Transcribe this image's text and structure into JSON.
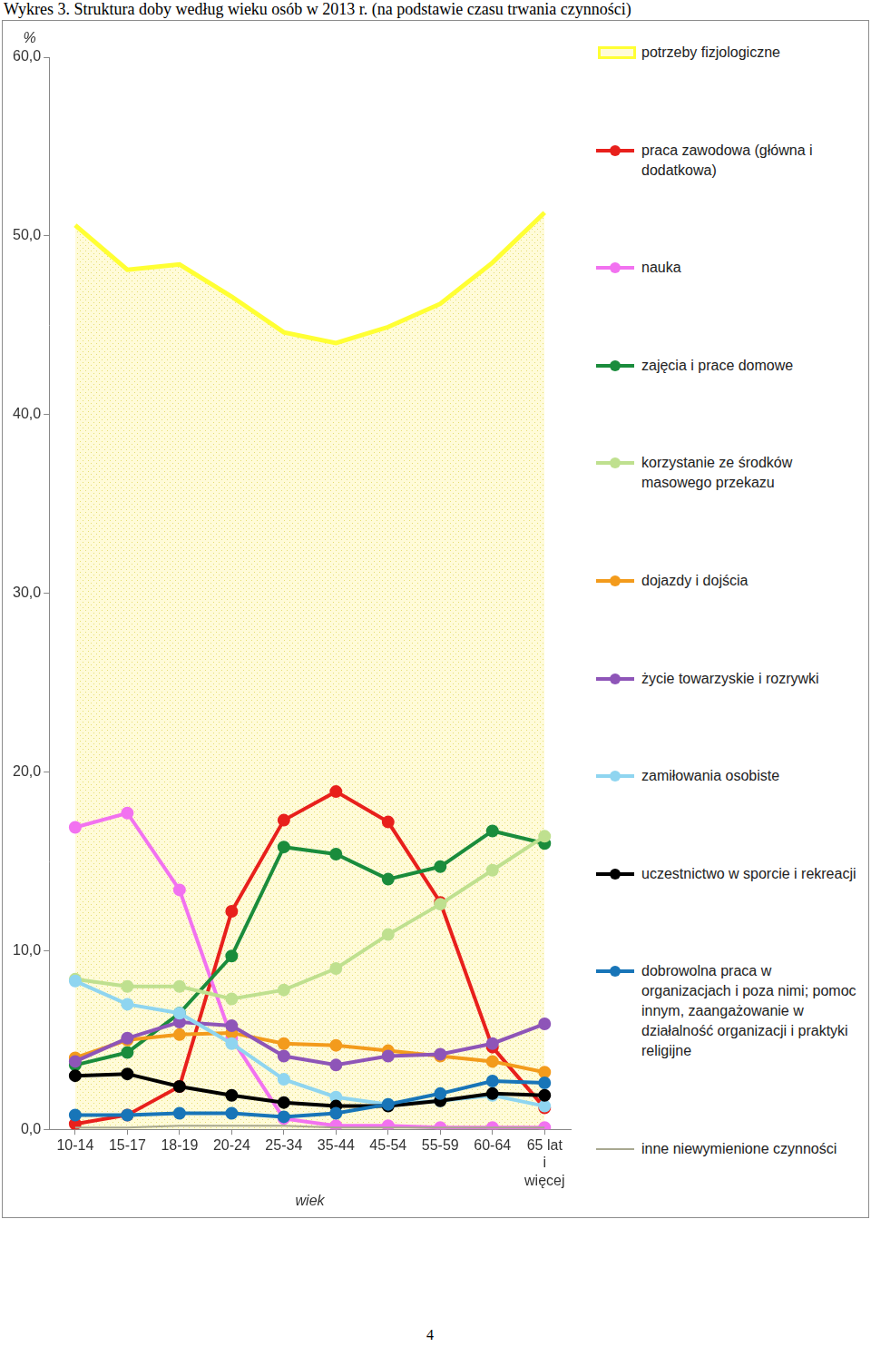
{
  "page_number": "4",
  "chart_data": {
    "type": "line",
    "title": "Wykres 3. Struktura doby według wieku osób w 2013 r. (na podstawie czasu trwania czynności)",
    "x_label": "wiek",
    "y_label": "%",
    "categories": [
      "10-14",
      "15-17",
      "18-19",
      "20-24",
      "25-34",
      "35-44",
      "45-54",
      "55-59",
      "60-64",
      "65 lat i więcej"
    ],
    "ylim": [
      0,
      60
    ],
    "yticks": [
      {
        "value": 0,
        "label": "0,0"
      },
      {
        "value": 10,
        "label": "10,0"
      },
      {
        "value": 20,
        "label": "20,0"
      },
      {
        "value": 30,
        "label": "30,0"
      },
      {
        "value": 40,
        "label": "40,0"
      },
      {
        "value": 50,
        "label": "50,0"
      },
      {
        "value": 60,
        "label": "60,0"
      }
    ],
    "grid": false,
    "legend": "right",
    "series": [
      {
        "name": "potrzeby fizjologiczne",
        "type": "area",
        "marker": "none",
        "color": "#ffff33",
        "values": [
          50.6,
          48.1,
          48.4,
          46.6,
          44.6,
          44.0,
          44.9,
          46.2,
          48.5,
          51.3
        ]
      },
      {
        "name": "praca zawodowa (główna i dodatkowa)",
        "type": "line",
        "marker": "circle",
        "color": "#e8201c",
        "values": [
          0.3,
          0.8,
          2.4,
          12.2,
          17.3,
          18.9,
          17.2,
          12.7,
          4.6,
          1.2
        ]
      },
      {
        "name": "nauka",
        "type": "line",
        "marker": "circle",
        "color": "#f272f0",
        "values": [
          16.9,
          17.7,
          13.4,
          5.1,
          0.6,
          0.2,
          0.2,
          0.1,
          0.1,
          0.1
        ]
      },
      {
        "name": "zajęcia i prace domowe",
        "type": "line",
        "marker": "circle",
        "color": "#1a8c3c",
        "values": [
          3.6,
          4.3,
          6.5,
          9.7,
          15.8,
          15.4,
          14.0,
          14.7,
          16.7,
          16.0
        ]
      },
      {
        "name": "korzystanie ze środków masowego przekazu",
        "type": "line",
        "marker": "circle",
        "color": "#bfe08f",
        "values": [
          8.4,
          8.0,
          8.0,
          7.3,
          7.8,
          9.0,
          10.9,
          12.6,
          14.5,
          16.4
        ]
      },
      {
        "name": "dojazdy i dojścia",
        "type": "line",
        "marker": "circle",
        "color": "#f39b1c",
        "values": [
          4.0,
          5.0,
          5.3,
          5.4,
          4.8,
          4.7,
          4.4,
          4.1,
          3.8,
          3.2
        ]
      },
      {
        "name": "życie towarzyskie i rozrywki",
        "type": "line",
        "marker": "circle",
        "color": "#8e55b8",
        "values": [
          3.8,
          5.1,
          6.0,
          5.8,
          4.1,
          3.6,
          4.1,
          4.2,
          4.8,
          5.9
        ]
      },
      {
        "name": "zamiłowania osobiste",
        "type": "line",
        "marker": "circle",
        "color": "#8fd5f0",
        "values": [
          8.3,
          7.0,
          6.5,
          4.8,
          2.8,
          1.8,
          1.4,
          1.6,
          1.9,
          1.3
        ]
      },
      {
        "name": "uczestnictwo w sporcie i rekreacji",
        "type": "line",
        "marker": "circle",
        "color": "#000000",
        "values": [
          3.0,
          3.1,
          2.4,
          1.9,
          1.5,
          1.3,
          1.3,
          1.6,
          2.0,
          1.9
        ]
      },
      {
        "name": "dobrowolna praca w organizacjach i poza nimi; pomoc innym, zaangażowanie w działalność organizacji i praktyki religijne",
        "type": "line",
        "marker": "circle",
        "color": "#1875b8",
        "values": [
          0.8,
          0.8,
          0.9,
          0.9,
          0.7,
          0.9,
          1.4,
          2.0,
          2.7,
          2.6
        ]
      },
      {
        "name": "inne niewymienione czynności",
        "type": "line",
        "marker": "none",
        "color": "#a8a890",
        "values": [
          0.1,
          0.1,
          0.2,
          0.2,
          0.2,
          0.1,
          0.1,
          0.1,
          0.1,
          0.1
        ]
      }
    ]
  }
}
